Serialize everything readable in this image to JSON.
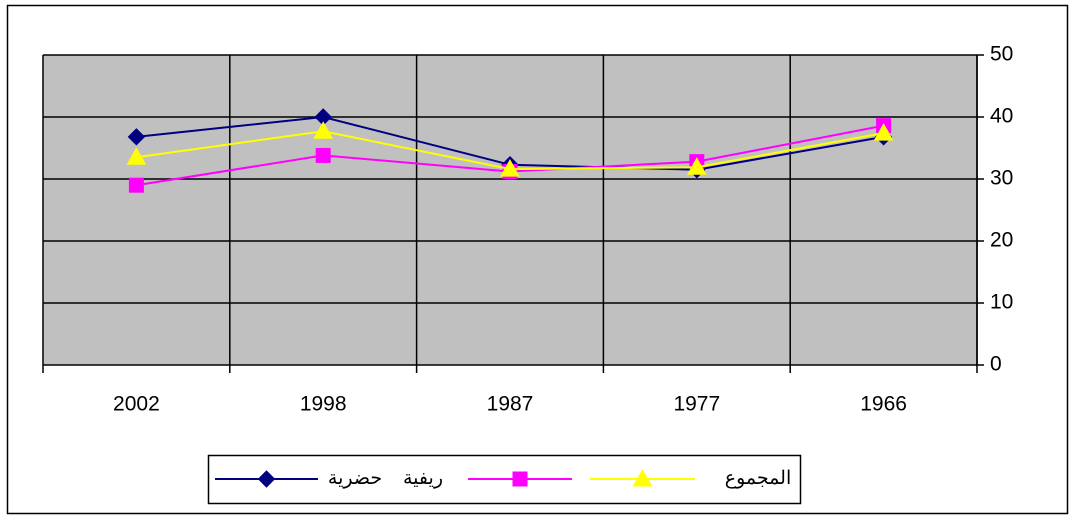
{
  "chart_data": {
    "type": "line",
    "categories": [
      "2002",
      "1998",
      "1987",
      "1977",
      "1966"
    ],
    "series": [
      {
        "name": "حضرية",
        "color": "#000080",
        "marker": "diamond",
        "values": [
          36.8,
          40,
          32.3,
          31.5,
          36.8
        ]
      },
      {
        "name": "ريفية",
        "color": "#ff00ff",
        "marker": "square",
        "values": [
          29,
          33.8,
          31.2,
          32.8,
          38.6
        ]
      },
      {
        "name": "المجموع",
        "color": "#ffff00",
        "marker": "triangle",
        "values": [
          33.5,
          37.7,
          31.6,
          31.9,
          37.4
        ]
      }
    ],
    "ylim": [
      0,
      50
    ],
    "yticks": [
      0,
      10,
      20,
      30,
      40,
      50
    ],
    "grid": true,
    "legend": "bottom"
  }
}
